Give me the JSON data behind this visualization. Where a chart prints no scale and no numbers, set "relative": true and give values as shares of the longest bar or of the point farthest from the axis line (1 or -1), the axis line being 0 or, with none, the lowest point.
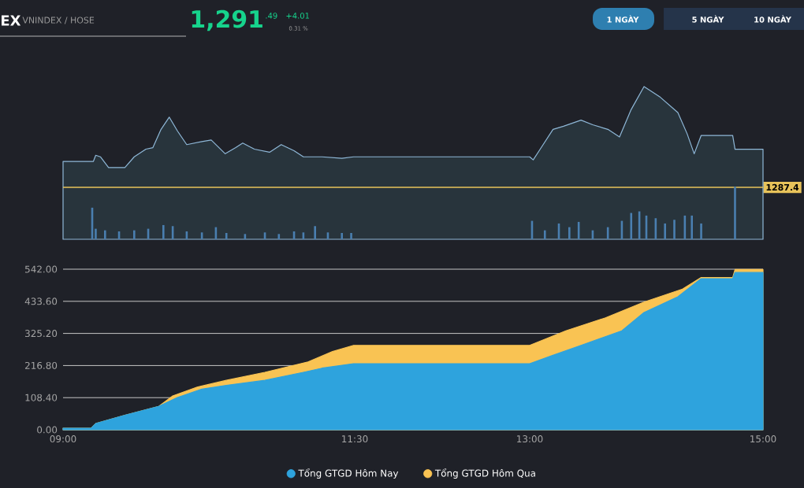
{
  "chart_data": [
    {
      "type": "area",
      "relative": true,
      "xlim": [
        9,
        15
      ],
      "annotations": [
        "EX",
        "VNINDEX / HOSE",
        "1,291",
        ".49",
        "+4.01",
        "0.31 %",
        "1 NGÀY",
        "5 NGÀY",
        "10 NGÀY",
        "1287.4"
      ],
      "series": [
        {
          "color": "#8fb8d8",
          "x": [
            9.0,
            9.26,
            9.28,
            9.32,
            9.39,
            9.46,
            9.53,
            9.61,
            9.71,
            9.77,
            9.84,
            9.91,
            9.98,
            10.06,
            10.19,
            10.27,
            10.39,
            10.48,
            10.54,
            10.64,
            10.77,
            10.87,
            10.98,
            11.06,
            11.22,
            11.39,
            11.49,
            13.0,
            13.03,
            13.09,
            13.2,
            13.29,
            13.44,
            13.54,
            13.67,
            13.77,
            13.87,
            13.98,
            14.04,
            14.12,
            14.27,
            14.35,
            14.41,
            14.47,
            14.74,
            14.76,
            15.0
          ],
          "values": [
            0.51,
            0.51,
            0.55,
            0.54,
            0.47,
            0.47,
            0.47,
            0.54,
            0.59,
            0.6,
            0.72,
            0.8,
            0.71,
            0.62,
            0.64,
            0.65,
            0.56,
            0.6,
            0.63,
            0.59,
            0.57,
            0.62,
            0.58,
            0.54,
            0.54,
            0.53,
            0.54,
            0.54,
            0.52,
            0.59,
            0.72,
            0.74,
            0.78,
            0.75,
            0.72,
            0.67,
            0.85,
            1.0,
            0.97,
            0.93,
            0.83,
            0.69,
            0.56,
            0.68,
            0.68,
            0.59,
            0.59
          ]
        },
        {
          "type": "bar",
          "axis": "y2",
          "color": "#4a7fb0",
          "x": [
            9.25,
            9.28,
            9.36,
            9.48,
            9.61,
            9.73,
            9.86,
            9.94,
            10.06,
            10.19,
            10.31,
            10.4,
            10.56,
            10.73,
            10.85,
            10.98,
            11.06,
            11.16,
            11.27,
            11.39,
            11.47,
            13.02,
            13.13,
            13.25,
            13.34,
            13.42,
            13.54,
            13.67,
            13.79,
            13.87,
            13.94,
            14.0,
            14.08,
            14.16,
            14.24,
            14.33,
            14.39,
            14.47,
            14.76
          ],
          "values": [
            0.6,
            0.2,
            0.17,
            0.15,
            0.17,
            0.2,
            0.27,
            0.25,
            0.15,
            0.13,
            0.23,
            0.12,
            0.1,
            0.13,
            0.1,
            0.15,
            0.13,
            0.25,
            0.13,
            0.12,
            0.12,
            0.35,
            0.17,
            0.3,
            0.23,
            0.33,
            0.17,
            0.23,
            0.35,
            0.5,
            0.53,
            0.45,
            0.4,
            0.3,
            0.37,
            0.45,
            0.45,
            0.3,
            1.0
          ]
        }
      ],
      "ref_lines": [
        {
          "axis": "y",
          "value": 0.34,
          "color": "#e8c35a"
        }
      ]
    },
    {
      "type": "area",
      "xlim": [
        9,
        15
      ],
      "ylim": [
        0,
        542
      ],
      "grid": "y",
      "legend": "bottom",
      "xticks": [
        {
          "value": 9,
          "label": "09:00"
        },
        {
          "value": 11.5,
          "label": "11:30"
        },
        {
          "value": 13,
          "label": "13:00"
        },
        {
          "value": 15,
          "label": "15:00"
        }
      ],
      "yticks": [
        {
          "value": 0,
          "label": "0.00"
        },
        {
          "value": 108.4,
          "label": "108.40"
        },
        {
          "value": 216.8,
          "label": "216.80"
        },
        {
          "value": 325.2,
          "label": "325.20"
        },
        {
          "value": 433.6,
          "label": "433.60"
        },
        {
          "value": 542,
          "label": "542.00"
        }
      ],
      "series": [
        {
          "name": "Tổng GTGD Hôm Nay",
          "color": "#2ea3dd",
          "x": [
            9.0,
            9.24,
            9.28,
            9.53,
            9.82,
            9.98,
            10.19,
            10.4,
            10.73,
            11.06,
            11.22,
            11.49,
            13.0,
            13.19,
            13.44,
            13.79,
            13.98,
            14.27,
            14.47,
            14.74,
            14.76,
            15.0
          ],
          "values": [
            5,
            5,
            21,
            49,
            79,
            109,
            137,
            150,
            167,
            194,
            208,
            223,
            223,
            250,
            285,
            334,
            396,
            449,
            510,
            510,
            531,
            531
          ]
        },
        {
          "name": "Tổng GTGD Hôm Qua",
          "color": "#f9c353",
          "x": [
            9.0,
            9.24,
            9.28,
            9.53,
            9.82,
            9.94,
            10.15,
            10.4,
            10.73,
            11.1,
            11.31,
            11.49,
            13.0,
            13.31,
            13.65,
            13.98,
            14.31,
            14.47,
            14.74,
            14.76,
            15.0
          ],
          "values": [
            5,
            5,
            21,
            49,
            79,
            114,
            144,
            167,
            194,
            229,
            264,
            285,
            285,
            334,
            378,
            431,
            475,
            514,
            514,
            541,
            541
          ]
        }
      ]
    }
  ]
}
